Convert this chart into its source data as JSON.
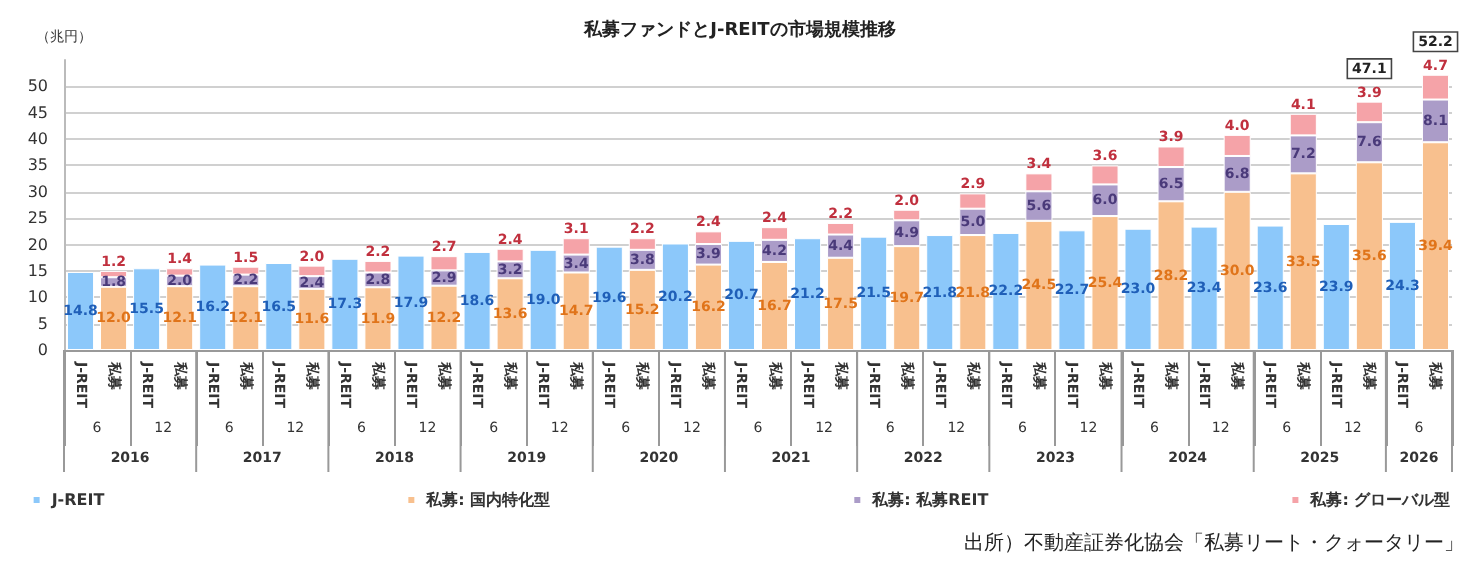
{
  "chart_data": {
    "type": "bar",
    "title": "私募ファンドとJ-REITの市場規模推移",
    "ylabel": "（兆円）",
    "categories": [
      "J-REIT",
      "私募",
      "J-REIT",
      "私募",
      "J-REIT",
      "私募",
      "J-REIT",
      "私募",
      "J-REIT",
      "私募",
      "J-REIT",
      "私募",
      "J-REIT",
      "私募",
      "J-REIT",
      "私募",
      "J-REIT",
      "私募",
      "J-REIT",
      "私募",
      "J-REIT",
      "私募",
      "J-REIT",
      "私募",
      "J-REIT",
      "私募",
      "J-REIT",
      "私募",
      "J-REIT",
      "私募",
      "J-REIT",
      "私募",
      "J-REIT",
      "私募",
      "J-REIT",
      "私募",
      "J-REIT",
      "私募",
      "J-REIT",
      "私募",
      "J-REIT",
      "私募"
    ],
    "series": [
      {
        "name": "J-REIT",
        "color": "#8cc8fa",
        "values": [
          14.8,
          null,
          15.5,
          null,
          16.2,
          null,
          16.5,
          null,
          17.3,
          null,
          17.9,
          null,
          18.6,
          null,
          19.0,
          null,
          19.6,
          null,
          20.2,
          null,
          20.7,
          null,
          21.2,
          null,
          21.5,
          null,
          21.8,
          null,
          22.2,
          null,
          22.7,
          null,
          23.0,
          null,
          23.4,
          null,
          23.6,
          null,
          23.9,
          null,
          24.3,
          null
        ],
        "value_labels": [
          "14.8",
          null,
          "15.5",
          null,
          "16.2",
          null,
          "16.5",
          null,
          "17.3",
          null,
          "17.9",
          null,
          "18.6",
          null,
          "19.0",
          null,
          "19.6",
          null,
          "20.2",
          null,
          "20.7",
          null,
          "21.2",
          null,
          "21.5",
          null,
          "21.8",
          null,
          "22.2",
          null,
          "22.7",
          null,
          "23.0",
          null,
          "23.4",
          null,
          "23.6",
          null,
          "23.9",
          null,
          "24.3",
          null
        ]
      },
      {
        "name": "私募: 国内特化型",
        "color": "#f8c08e",
        "values": [
          null,
          12.0,
          null,
          12.1,
          null,
          12.1,
          null,
          11.6,
          null,
          11.9,
          null,
          12.2,
          null,
          13.6,
          null,
          14.7,
          null,
          15.2,
          null,
          16.2,
          null,
          16.7,
          null,
          17.5,
          null,
          19.7,
          null,
          21.8,
          null,
          24.5,
          null,
          25.4,
          null,
          28.2,
          null,
          30.0,
          null,
          33.5,
          null,
          35.6,
          null,
          39.4
        ],
        "value_labels": [
          null,
          "12.0",
          null,
          "12.1",
          null,
          "12.1",
          null,
          "11.6",
          null,
          "11.9",
          null,
          "12.2",
          null,
          "13.6",
          null,
          "14.7",
          null,
          "15.2",
          null,
          "16.2",
          null,
          "16.7",
          null,
          "17.5",
          null,
          "19.7",
          null,
          "21.8",
          null,
          "24.5",
          null,
          "25.4",
          null,
          "28.2",
          null,
          "30.0",
          null,
          "33.5",
          null,
          "35.6",
          null,
          "39.4"
        ]
      },
      {
        "name": "私募: 私募REIT",
        "color": "#ab9cc8",
        "values": [
          null,
          1.8,
          null,
          2.0,
          null,
          2.2,
          null,
          2.4,
          null,
          2.8,
          null,
          2.9,
          null,
          3.2,
          null,
          3.4,
          null,
          3.8,
          null,
          3.9,
          null,
          4.2,
          null,
          4.4,
          null,
          4.9,
          null,
          5.0,
          null,
          5.6,
          null,
          6.0,
          null,
          6.5,
          null,
          6.8,
          null,
          7.2,
          null,
          7.6,
          null,
          8.1
        ],
        "value_labels": [
          null,
          "1.8",
          null,
          "2.0",
          null,
          "2.2",
          null,
          "2.4",
          null,
          "2.8",
          null,
          "2.9",
          null,
          "3.2",
          null,
          "3.4",
          null,
          "3.8",
          null,
          "3.9",
          null,
          "4.2",
          null,
          "4.4",
          null,
          "4.9",
          null,
          "5.0",
          null,
          "5.6",
          null,
          "6.0",
          null,
          "6.5",
          null,
          "6.8",
          null,
          "7.2",
          null,
          "7.6",
          null,
          "8.1"
        ]
      },
      {
        "name": "私募: グローバル型",
        "color": "#f5a3a8",
        "values": [
          null,
          1.2,
          null,
          1.4,
          null,
          1.5,
          null,
          2.0,
          null,
          2.2,
          null,
          2.7,
          null,
          2.4,
          null,
          3.1,
          null,
          2.2,
          null,
          2.4,
          null,
          2.4,
          null,
          2.2,
          null,
          2.0,
          null,
          2.9,
          null,
          3.4,
          null,
          3.6,
          null,
          3.9,
          null,
          4.0,
          null,
          4.1,
          null,
          3.9,
          null,
          4.7
        ],
        "value_labels": [
          null,
          "1.2",
          null,
          "1.4",
          null,
          "1.5",
          null,
          "2.0",
          null,
          "2.2",
          null,
          "2.7",
          null,
          "2.4",
          null,
          "3.1",
          null,
          "2.2",
          null,
          "2.4",
          null,
          "2.4",
          null,
          "2.2",
          null,
          "2.0",
          null,
          "2.9",
          null,
          "3.4",
          null,
          "3.6",
          null,
          "3.9",
          null,
          "4.0",
          null,
          "4.1",
          null,
          "3.9",
          null,
          "4.7"
        ]
      }
    ],
    "stacked": true,
    "totals": [
      null,
      null,
      null,
      null,
      null,
      null,
      null,
      null,
      null,
      null,
      null,
      null,
      null,
      null,
      null,
      null,
      null,
      null,
      null,
      null,
      null,
      null,
      null,
      null,
      null,
      null,
      null,
      null,
      null,
      null,
      null,
      null,
      null,
      null,
      null,
      null,
      null,
      null,
      null,
      "47.1",
      null,
      "52.2"
    ],
    "ylim": [
      0,
      55
    ],
    "yticks": [
      0,
      5,
      10,
      15,
      20,
      25,
      30,
      35,
      40,
      45,
      50
    ],
    "grid": "y",
    "legend": "bottom",
    "annotations": [
      "6",
      "12",
      "6",
      "12",
      "6",
      "12",
      "6",
      "12",
      "6",
      "12",
      "6",
      "12",
      "6",
      "12",
      "6",
      "12",
      "6",
      "12",
      "6",
      "12",
      "6",
      "2016",
      "2017",
      "2018",
      "2019",
      "2020",
      "2021",
      "2022",
      "2023",
      "2024",
      "2025",
      "2026",
      "出所）不動産証券化協会「私募リート・クォータリー」"
    ]
  }
}
